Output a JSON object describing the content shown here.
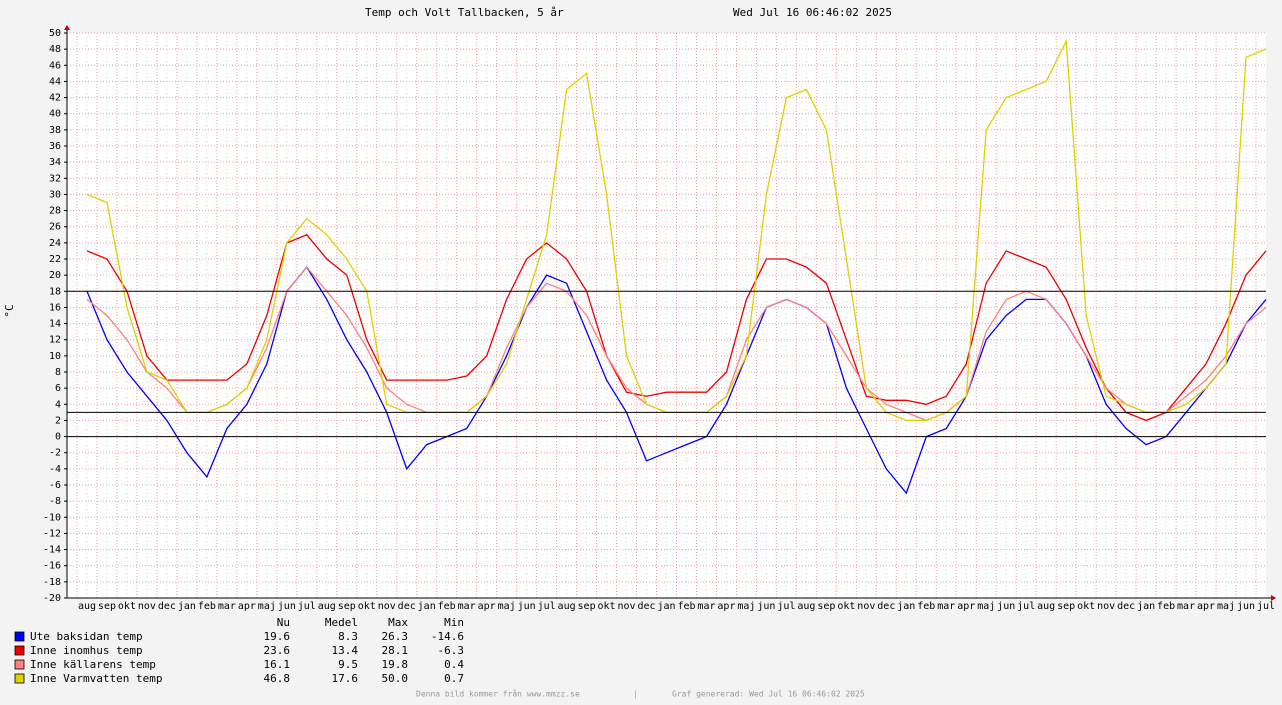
{
  "chart_data": {
    "type": "line",
    "title": "Temp och Volt Tallbacken, 5 år",
    "subtitle": "Wed Jul 16 06:46:02 2025",
    "y_label": "°C",
    "categories": [
      "aug",
      "sep",
      "okt",
      "nov",
      "dec",
      "jan",
      "feb",
      "mar",
      "apr",
      "maj",
      "jun",
      "jul",
      "aug",
      "sep",
      "okt",
      "nov",
      "dec",
      "jan",
      "feb",
      "mar",
      "apr",
      "maj",
      "jun",
      "jul",
      "aug",
      "sep",
      "okt",
      "nov",
      "dec",
      "jan",
      "feb",
      "mar",
      "apr",
      "maj",
      "jun",
      "jul",
      "aug",
      "sep",
      "okt",
      "nov",
      "dec",
      "jan",
      "feb",
      "mar",
      "apr",
      "maj",
      "jun",
      "jul",
      "aug",
      "sep",
      "okt",
      "nov",
      "dec",
      "jan",
      "feb",
      "mar",
      "apr",
      "maj",
      "jun",
      "jul"
    ],
    "series": [
      {
        "name": "Ute baksidan temp",
        "color": "#0000ff",
        "values": [
          18,
          12,
          8,
          5,
          2,
          -2,
          -5,
          1,
          4,
          9,
          18,
          21,
          17,
          12,
          8,
          3,
          -4,
          -1,
          0,
          1,
          5,
          10,
          16,
          20,
          19,
          13,
          7,
          3,
          -3,
          -2,
          -1,
          0,
          4,
          10,
          16,
          17,
          16,
          14,
          6,
          1,
          -4,
          -7,
          0,
          1,
          5,
          12,
          15,
          17,
          17,
          14,
          10,
          4,
          1,
          -1,
          0,
          3,
          6,
          9,
          14,
          17
        ]
      },
      {
        "name": "Inne inomhus temp",
        "color": "#ee0000",
        "values": [
          23,
          22,
          18,
          10,
          7,
          7,
          7,
          7,
          9,
          15,
          24,
          25,
          22,
          20,
          12,
          7,
          7,
          7,
          7,
          7.5,
          10,
          17,
          22,
          24,
          22,
          18,
          10,
          5.5,
          5,
          5.5,
          5.5,
          5.5,
          8,
          17,
          22,
          22,
          21,
          19,
          12,
          5,
          4.5,
          4.5,
          4,
          5,
          9,
          19,
          23,
          22,
          21,
          17,
          11,
          6,
          3,
          2,
          3,
          6,
          9,
          14,
          20,
          23
        ]
      },
      {
        "name": "Inne källarens temp",
        "color": "#ff8080",
        "values": [
          17,
          15,
          12,
          8,
          6,
          3,
          3,
          4,
          6,
          11,
          18,
          21,
          18,
          15,
          11,
          6,
          4,
          3,
          3,
          3,
          5,
          11,
          16,
          19,
          18,
          15,
          10,
          6,
          4,
          3,
          3,
          3,
          5,
          12,
          16,
          17,
          16,
          14,
          10,
          6,
          4,
          3,
          2,
          3,
          5,
          13,
          17,
          18,
          17,
          14,
          10,
          6,
          4,
          3,
          3,
          5,
          7,
          10,
          14,
          16
        ]
      },
      {
        "name": "Inne Varmvatten temp",
        "color": "#e0d000",
        "values": [
          30,
          29,
          16,
          8,
          7,
          3,
          3,
          4,
          6,
          12,
          24,
          27,
          25,
          22,
          18,
          4,
          3,
          3,
          3,
          3,
          5,
          9,
          17,
          25,
          43,
          45,
          30,
          10,
          4,
          3,
          3,
          3,
          5,
          10,
          30,
          42,
          43,
          38,
          22,
          6,
          3,
          2,
          2,
          3,
          5,
          38,
          42,
          43,
          44,
          49,
          15,
          5,
          4,
          3,
          3,
          4,
          6,
          9,
          47,
          48
        ]
      }
    ],
    "ylim": [
      -20,
      50
    ],
    "yticks": [
      -20,
      -18,
      -16,
      -14,
      -12,
      -10,
      -8,
      -6,
      -4,
      -2,
      0,
      2,
      4,
      6,
      8,
      10,
      12,
      14,
      16,
      18,
      20,
      22,
      24,
      26,
      28,
      30,
      32,
      34,
      36,
      38,
      40,
      42,
      44,
      46,
      48,
      50
    ],
    "hlines": [
      18,
      3,
      0
    ],
    "grid": true,
    "legend_table": {
      "headers": [
        "Nu",
        "Medel",
        "Max",
        "Min"
      ],
      "rows": [
        [
          "19.6",
          "8.3",
          "26.3",
          "-14.6"
        ],
        [
          "23.6",
          "13.4",
          "28.1",
          "-6.3"
        ],
        [
          "16.1",
          "9.5",
          "19.8",
          "0.4"
        ],
        [
          "46.8",
          "17.6",
          "50.0",
          "0.7"
        ]
      ]
    },
    "footer": [
      "Denna bild kommer från www.mmzz.se",
      "|",
      "Graf genererad: Wed Jul 16 06:46:02 2025"
    ]
  }
}
